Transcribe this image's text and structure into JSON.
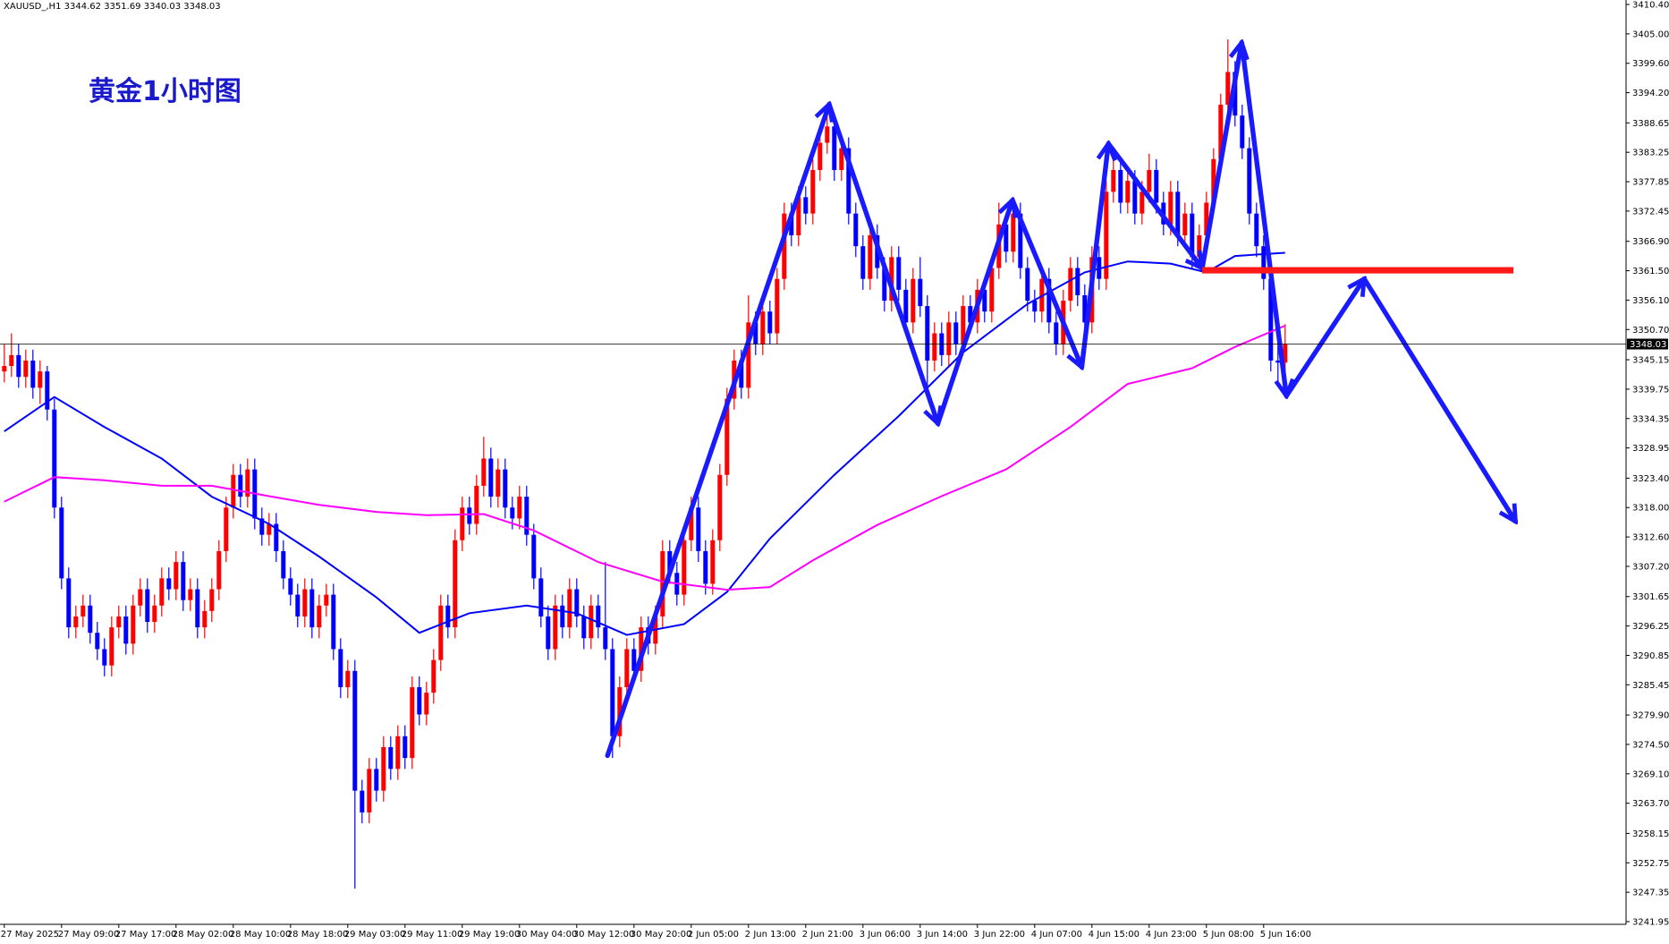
{
  "chart_data": {
    "type": "candlestick",
    "symbol": "XAUUSD_,H1",
    "title": "黄金1小时图",
    "up_color": "#ff0000",
    "down_color": "#0000ff",
    "ylim": [
      3241.95,
      3410.4
    ],
    "yticks": [
      {
        "value": 3410.4,
        "label": "3410.40"
      },
      {
        "value": 3405,
        "label": "3405.00"
      },
      {
        "value": 3399.6,
        "label": "3399.60"
      },
      {
        "value": 3394.2,
        "label": "3394.20"
      },
      3388.65,
      3383.25,
      3377.85,
      3372.45,
      {
        "value": 3366.9,
        "label": "3366.90"
      },
      {
        "value": 3361.5,
        "label": "3361.50"
      },
      {
        "value": 3356.1,
        "label": "3356.10"
      },
      {
        "value": 3350.7,
        "label": "3350.70"
      },
      3345.15,
      3339.75,
      3334.35,
      3328.95,
      {
        "value": 3323.4,
        "label": "3323.40"
      },
      {
        "value": 3318,
        "label": "3318.00"
      },
      {
        "value": 3312.6,
        "label": "3312.60"
      },
      {
        "value": 3307.2,
        "label": "3307.20"
      },
      3301.65,
      3296.25,
      3290.85,
      3285.45,
      {
        "value": 3279.9,
        "label": "3279.90"
      },
      {
        "value": 3274.5,
        "label": "3274.50"
      },
      {
        "value": 3269.1,
        "label": "3269.10"
      },
      {
        "value": 3263.7,
        "label": "3263.70"
      },
      3258.15,
      3252.75,
      3247.35,
      3241.95
    ],
    "categories": [
      "27 May 2025",
      null,
      null,
      null,
      null,
      null,
      null,
      null,
      "27 May 09:00",
      null,
      null,
      null,
      null,
      null,
      null,
      null,
      "27 May 17:00",
      null,
      null,
      null,
      null,
      null,
      null,
      null,
      "28 May 02:00",
      null,
      null,
      null,
      null,
      null,
      null,
      null,
      "28 May 10:00",
      null,
      null,
      null,
      null,
      null,
      null,
      null,
      "28 May 18:00",
      null,
      null,
      null,
      null,
      null,
      null,
      null,
      "29 May 03:00",
      null,
      null,
      null,
      null,
      null,
      null,
      null,
      "29 May 11:00",
      null,
      null,
      null,
      null,
      null,
      null,
      null,
      "29 May 19:00",
      null,
      null,
      null,
      null,
      null,
      null,
      null,
      "30 May 04:00",
      null,
      null,
      null,
      null,
      null,
      null,
      null,
      "30 May 12:00",
      null,
      null,
      null,
      null,
      null,
      null,
      null,
      "30 May 20:00",
      null,
      null,
      null,
      null,
      null,
      null,
      null,
      "2 Jun 05:00",
      null,
      null,
      null,
      null,
      null,
      null,
      null,
      "2 Jun 13:00",
      null,
      null,
      null,
      null,
      null,
      null,
      null,
      "2 Jun 21:00",
      null,
      null,
      null,
      null,
      null,
      null,
      null,
      "3 Jun 06:00",
      null,
      null,
      null,
      null,
      null,
      null,
      null,
      "3 Jun 14:00",
      null,
      null,
      null,
      null,
      null,
      null,
      null,
      "3 Jun 22:00",
      null,
      null,
      null,
      null,
      null,
      null,
      null,
      "4 Jun 07:00",
      null,
      null,
      null,
      null,
      null,
      null,
      null,
      "4 Jun 15:00",
      null,
      null,
      null,
      null,
      null,
      null,
      null,
      "4 Jun 23:00",
      null,
      null,
      null,
      null,
      null,
      null,
      null,
      "5 Jun 08:00",
      null,
      null,
      null,
      null,
      null,
      null,
      null,
      "5 Jun 16:00",
      null,
      null,
      null
    ],
    "candles": [
      [
        3343,
        3348,
        3341,
        3344
      ],
      [
        3344,
        3350,
        3342,
        3346
      ],
      [
        3346,
        3348,
        3340,
        3342
      ],
      [
        3342,
        3347,
        3340,
        3345
      ],
      [
        3345,
        3347,
        3338,
        3340
      ],
      [
        3340,
        3345,
        3337,
        3343
      ],
      [
        3343,
        3344,
        3334,
        3336
      ],
      [
        3336,
        3338,
        3316,
        3318
      ],
      [
        3318,
        3320,
        3303,
        3305
      ],
      [
        3305,
        3307,
        3294,
        3296
      ],
      [
        3296,
        3300,
        3294,
        3298
      ],
      [
        3298,
        3302,
        3296,
        3300
      ],
      [
        3300,
        3302,
        3293,
        3295
      ],
      [
        3295,
        3297,
        3290,
        3292
      ],
      [
        3292,
        3294,
        3287,
        3289
      ],
      [
        3289,
        3298,
        3287,
        3296
      ],
      [
        3296,
        3300,
        3294,
        3298
      ],
      [
        3298,
        3300,
        3291,
        3293
      ],
      [
        3293,
        3302,
        3291,
        3300
      ],
      [
        3300,
        3305,
        3298,
        3303
      ],
      [
        3303,
        3305,
        3295,
        3297
      ],
      [
        3297,
        3302,
        3295,
        3300
      ],
      [
        3300,
        3307,
        3298,
        3305
      ],
      [
        3305,
        3307,
        3301,
        3303
      ],
      [
        3303,
        3310,
        3301,
        3308
      ],
      [
        3308,
        3310,
        3299,
        3301
      ],
      [
        3301,
        3305,
        3299,
        3303
      ],
      [
        3303,
        3305,
        3294,
        3296
      ],
      [
        3296,
        3301,
        3294,
        3299
      ],
      [
        3299,
        3305,
        3297,
        3303
      ],
      [
        3303,
        3312,
        3301,
        3310
      ],
      [
        3310,
        3320,
        3308,
        3318
      ],
      [
        3318,
        3326,
        3316,
        3324
      ],
      [
        3324,
        3326,
        3318,
        3320
      ],
      [
        3320,
        3327,
        3318,
        3325
      ],
      [
        3325,
        3327,
        3314,
        3316
      ],
      [
        3316,
        3318,
        3311,
        3313
      ],
      [
        3313,
        3317,
        3311,
        3315
      ],
      [
        3315,
        3317,
        3308,
        3310
      ],
      [
        3310,
        3312,
        3303,
        3305
      ],
      [
        3305,
        3307,
        3300,
        3302
      ],
      [
        3302,
        3304,
        3296,
        3298
      ],
      [
        3298,
        3305,
        3296,
        3303
      ],
      [
        3303,
        3305,
        3294,
        3296
      ],
      [
        3296,
        3302,
        3294,
        3300
      ],
      [
        3300,
        3304,
        3298,
        3302
      ],
      [
        3302,
        3304,
        3290,
        3292
      ],
      [
        3292,
        3294,
        3283,
        3285
      ],
      [
        3285,
        3290,
        3283,
        3288
      ],
      [
        3288,
        3290,
        3248,
        3266
      ],
      [
        3266,
        3268,
        3260,
        3262
      ],
      [
        3262,
        3272,
        3260,
        3270
      ],
      [
        3270,
        3272,
        3264,
        3266
      ],
      [
        3266,
        3276,
        3264,
        3274
      ],
      [
        3274,
        3276,
        3268,
        3270
      ],
      [
        3270,
        3278,
        3268,
        3276
      ],
      [
        3276,
        3278,
        3270,
        3272
      ],
      [
        3272,
        3287,
        3270,
        3285
      ],
      [
        3285,
        3287,
        3278,
        3280
      ],
      [
        3280,
        3286,
        3278,
        3284
      ],
      [
        3284,
        3292,
        3282,
        3290
      ],
      [
        3290,
        3302,
        3288,
        3300
      ],
      [
        3300,
        3302,
        3294,
        3296
      ],
      [
        3296,
        3314,
        3294,
        3312
      ],
      [
        3312,
        3320,
        3310,
        3318
      ],
      [
        3318,
        3320,
        3313,
        3315
      ],
      [
        3315,
        3324,
        3313,
        3322
      ],
      [
        3322,
        3331,
        3320,
        3327
      ],
      [
        3327,
        3329,
        3318,
        3320
      ],
      [
        3320,
        3327,
        3318,
        3325
      ],
      [
        3325,
        3327,
        3316,
        3318
      ],
      [
        3318,
        3320,
        3314,
        3316
      ],
      [
        3316,
        3322,
        3314,
        3320
      ],
      [
        3320,
        3322,
        3311,
        3313
      ],
      [
        3313,
        3315,
        3303,
        3305
      ],
      [
        3305,
        3307,
        3296,
        3298
      ],
      [
        3298,
        3300,
        3290,
        3292
      ],
      [
        3292,
        3302,
        3290,
        3300
      ],
      [
        3300,
        3302,
        3294,
        3296
      ],
      [
        3296,
        3305,
        3294,
        3303
      ],
      [
        3303,
        3305,
        3296,
        3298
      ],
      [
        3298,
        3300,
        3292,
        3294
      ],
      [
        3294,
        3302,
        3292,
        3300
      ],
      [
        3300,
        3302,
        3294,
        3296
      ],
      [
        3296,
        3308,
        3290,
        3292
      ],
      [
        3292,
        3294,
        3272,
        3276
      ],
      [
        3276,
        3287,
        3274,
        3285
      ],
      [
        3285,
        3294,
        3283,
        3292
      ],
      [
        3292,
        3294,
        3286,
        3288
      ],
      [
        3288,
        3298,
        3286,
        3296
      ],
      [
        3296,
        3298,
        3291,
        3293
      ],
      [
        3293,
        3300,
        3291,
        3298
      ],
      [
        3298,
        3312,
        3296,
        3310
      ],
      [
        3310,
        3312,
        3304,
        3306
      ],
      [
        3306,
        3308,
        3300,
        3302
      ],
      [
        3302,
        3314,
        3300,
        3312
      ],
      [
        3312,
        3320,
        3310,
        3318
      ],
      [
        3318,
        3320,
        3308,
        3310
      ],
      [
        3310,
        3312,
        3302,
        3304
      ],
      [
        3304,
        3314,
        3302,
        3312
      ],
      [
        3312,
        3326,
        3310,
        3324
      ],
      [
        3324,
        3340,
        3322,
        3338
      ],
      [
        3338,
        3347,
        3336,
        3345
      ],
      [
        3345,
        3347,
        3338,
        3340
      ],
      [
        3340,
        3357,
        3338,
        3352
      ],
      [
        3352,
        3354,
        3346,
        3348
      ],
      [
        3348,
        3356,
        3346,
        3354
      ],
      [
        3354,
        3356,
        3348,
        3350
      ],
      [
        3350,
        3362,
        3348,
        3360
      ],
      [
        3360,
        3374,
        3358,
        3372
      ],
      [
        3372,
        3374,
        3366,
        3368
      ],
      [
        3368,
        3377,
        3366,
        3375
      ],
      [
        3375,
        3377,
        3370,
        3372
      ],
      [
        3372,
        3382,
        3370,
        3380
      ],
      [
        3380,
        3387,
        3378,
        3385
      ],
      [
        3385,
        3391,
        3383,
        3388
      ],
      [
        3388,
        3390,
        3378,
        3380
      ],
      [
        3380,
        3386,
        3378,
        3384
      ],
      [
        3384,
        3386,
        3370,
        3372
      ],
      [
        3372,
        3374,
        3364,
        3366
      ],
      [
        3366,
        3368,
        3358,
        3360
      ],
      [
        3360,
        3370,
        3358,
        3368
      ],
      [
        3368,
        3370,
        3360,
        3362
      ],
      [
        3362,
        3364,
        3354,
        3356
      ],
      [
        3356,
        3366,
        3354,
        3364
      ],
      [
        3364,
        3366,
        3356,
        3358
      ],
      [
        3358,
        3360,
        3350,
        3352
      ],
      [
        3352,
        3362,
        3350,
        3360
      ],
      [
        3360,
        3364,
        3353,
        3355
      ],
      [
        3355,
        3357,
        3340,
        3345
      ],
      [
        3345,
        3352,
        3343,
        3350
      ],
      [
        3350,
        3352,
        3344,
        3346
      ],
      [
        3346,
        3354,
        3344,
        3352
      ],
      [
        3352,
        3354,
        3346,
        3348
      ],
      [
        3348,
        3357,
        3346,
        3355
      ],
      [
        3355,
        3357,
        3350,
        3352
      ],
      [
        3352,
        3360,
        3350,
        3358
      ],
      [
        3358,
        3360,
        3352,
        3354
      ],
      [
        3354,
        3364,
        3352,
        3362
      ],
      [
        3362,
        3374,
        3360,
        3370
      ],
      [
        3370,
        3372,
        3363,
        3365
      ],
      [
        3365,
        3374,
        3363,
        3372
      ],
      [
        3372,
        3374,
        3360,
        3362
      ],
      [
        3362,
        3364,
        3354,
        3356
      ],
      [
        3356,
        3358,
        3352,
        3354
      ],
      [
        3354,
        3362,
        3352,
        3360
      ],
      [
        3360,
        3362,
        3350,
        3352
      ],
      [
        3352,
        3354,
        3346,
        3348
      ],
      [
        3348,
        3358,
        3346,
        3356
      ],
      [
        3356,
        3364,
        3354,
        3362
      ],
      [
        3362,
        3364,
        3355,
        3357
      ],
      [
        3357,
        3359,
        3350,
        3352
      ],
      [
        3352,
        3366,
        3350,
        3364
      ],
      [
        3364,
        3366,
        3358,
        3360
      ],
      [
        3360,
        3378,
        3358,
        3376
      ],
      [
        3376,
        3382,
        3374,
        3380
      ],
      [
        3380,
        3382,
        3372,
        3374
      ],
      [
        3374,
        3380,
        3372,
        3378
      ],
      [
        3378,
        3380,
        3370,
        3372
      ],
      [
        3372,
        3378,
        3370,
        3376
      ],
      [
        3376,
        3383,
        3374,
        3380
      ],
      [
        3380,
        3382,
        3372,
        3374
      ],
      [
        3374,
        3376,
        3368,
        3370
      ],
      [
        3370,
        3378,
        3368,
        3376
      ],
      [
        3376,
        3378,
        3366,
        3368
      ],
      [
        3368,
        3374,
        3366,
        3372
      ],
      [
        3372,
        3374,
        3362,
        3364
      ],
      [
        3364,
        3370,
        3362,
        3368
      ],
      [
        3368,
        3376,
        3366,
        3374
      ],
      [
        3374,
        3384,
        3372,
        3382
      ],
      [
        3382,
        3394,
        3380,
        3392
      ],
      [
        3392,
        3404,
        3390,
        3398
      ],
      [
        3398,
        3400,
        3388,
        3390
      ],
      [
        3390,
        3392,
        3382,
        3384
      ],
      [
        3384,
        3386,
        3370,
        3372
      ],
      [
        3372,
        3374,
        3364,
        3366
      ],
      [
        3366,
        3368,
        3358,
        3360
      ],
      [
        3360,
        3362,
        3343,
        3345
      ],
      [
        3345,
        3348,
        3341,
        3344.62
      ],
      [
        3344.62,
        3351.69,
        3340.03,
        3348.03
      ]
    ],
    "lines": [
      {
        "color": "#0000ff",
        "x": [
          0,
          7,
          14,
          22,
          29,
          37,
          44,
          52,
          58,
          65,
          73,
          80,
          87,
          95,
          101,
          107,
          116,
          125,
          134,
          143,
          151,
          157,
          163,
          168,
          172,
          179
        ],
        "values": [
          3332,
          3338.3,
          3332.8,
          3327,
          3320,
          3315,
          3309,
          3301.5,
          3295,
          3298.6,
          3300,
          3298.6,
          3294.6,
          3296.6,
          3302.5,
          3312.3,
          3324,
          3334.8,
          3346.5,
          3355.4,
          3361.2,
          3363.2,
          3362.8,
          3361.2,
          3364.2,
          3364.8
        ]
      },
      {
        "color": "#ff00ff",
        "x": [
          0,
          7,
          14,
          22,
          29,
          37,
          44,
          52,
          59,
          67,
          74,
          83,
          92,
          101,
          107,
          113,
          122,
          131,
          140,
          149,
          157,
          166,
          172,
          179
        ],
        "values": [
          3319.1,
          3323.6,
          3323,
          3322,
          3322,
          3320.1,
          3318.5,
          3317.2,
          3316.6,
          3316.8,
          3313.8,
          3308,
          3304.4,
          3302.9,
          3303.4,
          3308.3,
          3314.8,
          3320.1,
          3325,
          3332.8,
          3340.7,
          3343.6,
          3347.5,
          3351.4
        ]
      }
    ]
  }
}
